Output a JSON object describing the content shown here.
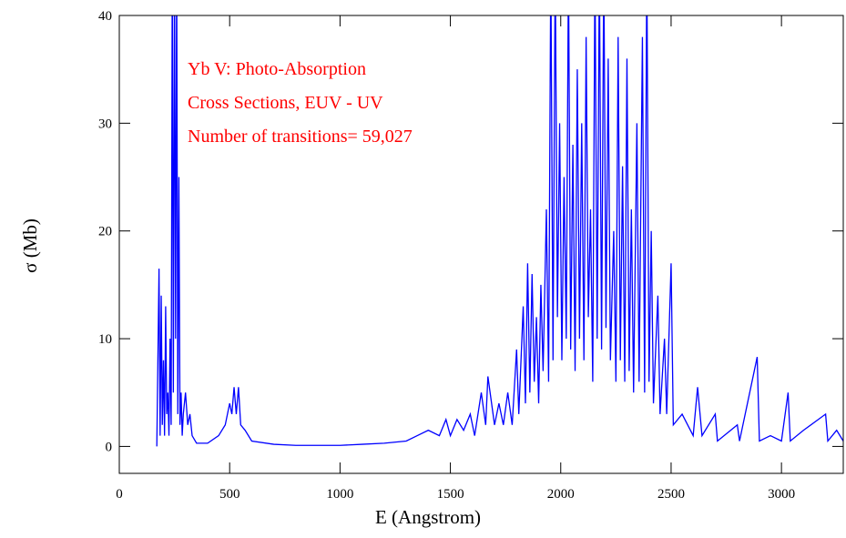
{
  "chart_data": {
    "type": "line",
    "xlabel": "E (Angstrom)",
    "ylabel": "σ (Mb)",
    "annotations": [
      "Yb V: Photo-Absorption",
      "Cross Sections, EUV - UV",
      "Number of transitions= 59,027"
    ],
    "annotation_color": "#ff0000",
    "xlim": [
      0,
      3280
    ],
    "ylim": [
      -2.5,
      40
    ],
    "xticks": [
      0,
      500,
      1000,
      1500,
      2000,
      2500,
      3000
    ],
    "yticks": [
      0,
      10,
      20,
      30,
      40
    ],
    "series": [
      {
        "color": "#0000ff",
        "x": [
          170,
          180,
          185,
          190,
          195,
          200,
          205,
          210,
          215,
          220,
          225,
          230,
          235,
          240,
          245,
          250,
          255,
          260,
          265,
          270,
          275,
          280,
          285,
          290,
          300,
          310,
          320,
          330,
          350,
          400,
          450,
          480,
          500,
          510,
          520,
          530,
          540,
          550,
          570,
          600,
          700,
          800,
          900,
          1000,
          1100,
          1200,
          1300,
          1350,
          1400,
          1450,
          1480,
          1500,
          1530,
          1560,
          1590,
          1610,
          1640,
          1660,
          1670,
          1700,
          1720,
          1740,
          1760,
          1780,
          1800,
          1810,
          1830,
          1840,
          1850,
          1860,
          1870,
          1880,
          1890,
          1900,
          1910,
          1920,
          1935,
          1945,
          1955,
          1965,
          1975,
          1985,
          1995,
          2005,
          2015,
          2025,
          2035,
          2045,
          2055,
          2065,
          2075,
          2085,
          2095,
          2105,
          2115,
          2125,
          2135,
          2145,
          2155,
          2165,
          2175,
          2185,
          2195,
          2205,
          2215,
          2225,
          2240,
          2250,
          2260,
          2270,
          2280,
          2290,
          2300,
          2310,
          2320,
          2330,
          2345,
          2355,
          2370,
          2380,
          2390,
          2400,
          2410,
          2420,
          2440,
          2450,
          2470,
          2480,
          2500,
          2510,
          2550,
          2600,
          2620,
          2640,
          2700,
          2710,
          2800,
          2810,
          2890,
          2900,
          2950,
          3000,
          3030,
          3040,
          3100,
          3200,
          3210,
          3250,
          3280
        ],
        "values": [
          0,
          16.5,
          1,
          14,
          2,
          8,
          1,
          13,
          3,
          5,
          1,
          10,
          2,
          45,
          5,
          45,
          10,
          45,
          3,
          25,
          2,
          5,
          1,
          3,
          5,
          2,
          3,
          1,
          0.3,
          0.3,
          1,
          2,
          4,
          3,
          5.5,
          3,
          5.5,
          2,
          1.5,
          0.5,
          0.2,
          0.1,
          0.1,
          0.1,
          0.2,
          0.3,
          0.5,
          1,
          1.5,
          1,
          2.5,
          1,
          2.5,
          1.5,
          3,
          1,
          5,
          2,
          6.5,
          2,
          4,
          2,
          5,
          2,
          9,
          3,
          13,
          4,
          17,
          5,
          16,
          6,
          12,
          4,
          15,
          7,
          22,
          6,
          45,
          8,
          45,
          12,
          30,
          8,
          25,
          10,
          45,
          9,
          28,
          7,
          35,
          10,
          30,
          8,
          38,
          12,
          22,
          6,
          45,
          10,
          45,
          9,
          45,
          11,
          36,
          8,
          20,
          6,
          38,
          8,
          26,
          6,
          36,
          7,
          22,
          5,
          30,
          6,
          38,
          5,
          45,
          6,
          20,
          4,
          14,
          3,
          10,
          3,
          17,
          2,
          3,
          1,
          5.5,
          1,
          3,
          0.5,
          2,
          0.5,
          8.3,
          0.5,
          1,
          0.5,
          5,
          0.5,
          1.5,
          3,
          0.5,
          1.5,
          0.5
        ]
      }
    ]
  }
}
